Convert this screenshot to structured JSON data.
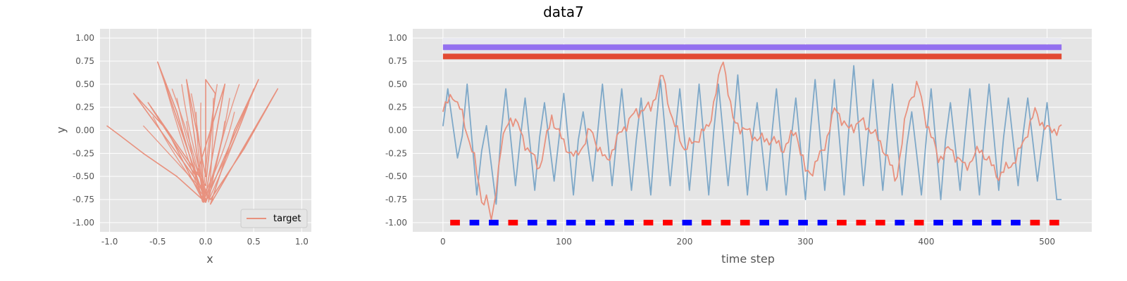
{
  "figure": {
    "suptitle": "data7"
  },
  "chart_data": [
    {
      "type": "line",
      "xlabel": "x",
      "ylabel": "y",
      "xlim": [
        -1.1,
        1.1
      ],
      "ylim": [
        -1.1,
        1.1
      ],
      "xticks": [
        -1.0,
        -0.5,
        0.0,
        0.5,
        1.0
      ],
      "yticks": [
        -1.0,
        -0.75,
        -0.5,
        -0.25,
        0.0,
        0.25,
        0.5,
        0.75,
        1.0
      ],
      "grid": true,
      "legend": {
        "position": "lower-right",
        "entries": [
          "target"
        ]
      },
      "colors": {
        "target": "#e8917e"
      },
      "series": [
        {
          "name": "target",
          "description_points": [
            [
              -1.03,
              0.05
            ],
            [
              -0.9,
              -0.05
            ],
            [
              -0.65,
              -0.25
            ],
            [
              -0.3,
              -0.5
            ],
            [
              0.0,
              -0.78
            ],
            [
              -0.5,
              0.74
            ],
            [
              -0.3,
              0.2
            ],
            [
              -0.05,
              -0.7
            ],
            [
              0.0,
              -0.78
            ],
            [
              0.15,
              -0.4
            ],
            [
              0.55,
              0.55
            ],
            [
              0.3,
              0.0
            ],
            [
              0.05,
              -0.8
            ],
            [
              0.75,
              0.45
            ],
            [
              0.4,
              -0.2
            ],
            [
              0.05,
              -0.75
            ],
            [
              -0.75,
              0.4
            ],
            [
              -0.4,
              0.0
            ],
            [
              -0.02,
              -0.78
            ],
            [
              -0.2,
              0.55
            ],
            [
              0.0,
              -0.5
            ],
            [
              0.0,
              0.55
            ],
            [
              0.1,
              0.4
            ],
            [
              0.0,
              -0.6
            ],
            [
              -0.6,
              0.3
            ],
            [
              -0.1,
              -0.5
            ],
            [
              0.2,
              0.5
            ],
            [
              0.0,
              -0.7
            ]
          ]
        }
      ]
    },
    {
      "type": "line",
      "xlabel": "time step",
      "ylabel": "",
      "xlim": [
        -25,
        537
      ],
      "ylim": [
        -1.1,
        1.1
      ],
      "xticks": [
        0,
        100,
        200,
        300,
        400,
        500
      ],
      "yticks": [
        -1.0,
        -0.75,
        -0.5,
        -0.25,
        0.0,
        0.25,
        0.5,
        0.75,
        1.0
      ],
      "grid": true,
      "length": 512,
      "bands": [
        {
          "y": 0.97,
          "color": "#e8e8f0"
        },
        {
          "y": 0.9,
          "color": "#9370f0"
        },
        {
          "y": 0.8,
          "color": "#e24a33"
        }
      ],
      "markers": {
        "y": -1.0,
        "start": 10,
        "spacing": 16,
        "colors": [
          "red",
          "blue",
          "blue",
          "red",
          "blue",
          "blue",
          "blue",
          "blue",
          "blue",
          "blue",
          "red",
          "red",
          "blue",
          "red",
          "red",
          "red",
          "blue",
          "blue",
          "blue",
          "blue",
          "red",
          "red",
          "red",
          "blue",
          "red",
          "blue",
          "blue",
          "blue",
          "blue",
          "blue",
          "red",
          "red"
        ]
      },
      "series": [
        {
          "name": "",
          "color": "#e8917e",
          "keypoints": [
            [
              0,
              0.2
            ],
            [
              8,
              0.4
            ],
            [
              15,
              0.2
            ],
            [
              25,
              -0.25
            ],
            [
              32,
              -0.75
            ],
            [
              37,
              -0.75
            ],
            [
              40,
              -1.02
            ],
            [
              48,
              -0.2
            ],
            [
              55,
              0.15
            ],
            [
              62,
              0.05
            ],
            [
              70,
              -0.2
            ],
            [
              80,
              -0.4
            ],
            [
              90,
              0.15
            ],
            [
              100,
              -0.15
            ],
            [
              110,
              -0.3
            ],
            [
              122,
              0.0
            ],
            [
              135,
              -0.35
            ],
            [
              148,
              0.0
            ],
            [
              160,
              0.2
            ],
            [
              172,
              0.25
            ],
            [
              182,
              0.6
            ],
            [
              190,
              0.1
            ],
            [
              200,
              -0.2
            ],
            [
              210,
              -0.1
            ],
            [
              220,
              0.05
            ],
            [
              232,
              0.78
            ],
            [
              240,
              0.1
            ],
            [
              250,
              0.0
            ],
            [
              262,
              -0.1
            ],
            [
              272,
              -0.1
            ],
            [
              282,
              -0.2
            ],
            [
              292,
              0.0
            ],
            [
              300,
              -0.45
            ],
            [
              305,
              -0.45
            ],
            [
              315,
              -0.2
            ],
            [
              325,
              0.25
            ],
            [
              335,
              0.0
            ],
            [
              345,
              0.1
            ],
            [
              355,
              0.0
            ],
            [
              365,
              -0.2
            ],
            [
              375,
              -0.55
            ],
            [
              385,
              0.3
            ],
            [
              393,
              0.5
            ],
            [
              400,
              0.1
            ],
            [
              410,
              -0.3
            ],
            [
              420,
              -0.2
            ],
            [
              432,
              -0.4
            ],
            [
              445,
              -0.2
            ],
            [
              460,
              -0.5
            ],
            [
              475,
              -0.3
            ],
            [
              490,
              0.2
            ],
            [
              500,
              0.0
            ],
            [
              512,
              0.02
            ]
          ],
          "texture_amplitude": 0.08
        },
        {
          "name": "",
          "color": "#7ea8c8",
          "period": 16,
          "peaks": [
            0.45,
            0.5,
            0.05,
            0.45,
            0.35,
            0.3,
            0.4,
            0.2,
            0.5,
            0.45,
            0.35,
            0.55,
            0.45,
            0.5,
            0.5,
            0.6,
            0.3,
            0.45,
            0.35,
            0.55,
            0.55,
            0.7,
            0.55,
            0.5,
            0.2,
            0.45,
            0.3,
            0.45,
            0.5,
            0.35,
            0.35,
            0.3
          ],
          "troughs": [
            -0.3,
            -0.7,
            -0.8,
            -0.6,
            -0.65,
            -0.55,
            -0.7,
            -0.55,
            -0.6,
            -0.65,
            -0.7,
            -0.6,
            -0.65,
            -0.7,
            -0.6,
            -0.7,
            -0.65,
            -0.7,
            -0.75,
            -0.65,
            -0.7,
            -0.6,
            -0.65,
            -0.7,
            -0.7,
            -0.75,
            -0.65,
            -0.7,
            -0.65,
            -0.6,
            -0.55,
            -0.75
          ]
        }
      ]
    }
  ]
}
